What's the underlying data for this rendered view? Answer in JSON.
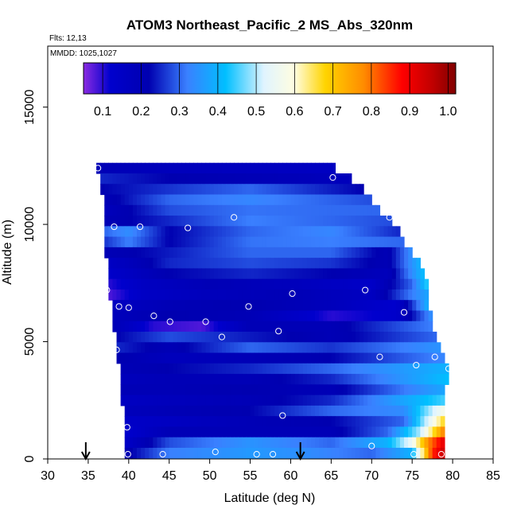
{
  "chart_data": {
    "type": "heatmap",
    "title": "ATOM3 Northeast_Pacific_2 MS_Abs_320nm",
    "flights_label": "Flts: 12,13",
    "mmdd_label": "MMDD: 1025,1027",
    "xlabel": "Latitude (deg N)",
    "ylabel": "Altitude (m)",
    "xlim": [
      30,
      85
    ],
    "ylim": [
      0,
      17600
    ],
    "x_ticks": [
      30,
      35,
      40,
      45,
      50,
      55,
      60,
      65,
      70,
      75,
      80,
      85
    ],
    "y_ticks": [
      0,
      5000,
      10000,
      15000
    ],
    "colorbar": {
      "range": [
        0.05,
        1.02
      ],
      "ticks": [
        "0.1",
        "0.2",
        "0.3",
        "0.4",
        "0.5",
        "0.6",
        "0.7",
        "0.8",
        "0.9",
        "1.0"
      ],
      "tick_values": [
        0.1,
        0.2,
        0.3,
        0.4,
        0.5,
        0.6,
        0.7,
        0.8,
        0.9,
        1.0
      ],
      "stops": [
        {
          "v": 0.05,
          "c": "#8a2be2"
        },
        {
          "v": 0.12,
          "c": "#0000cd"
        },
        {
          "v": 0.22,
          "c": "#0000b0"
        },
        {
          "v": 0.32,
          "c": "#3a80ff"
        },
        {
          "v": 0.42,
          "c": "#00bfff"
        },
        {
          "v": 0.52,
          "c": "#e0f4ff"
        },
        {
          "v": 0.6,
          "c": "#fffde0"
        },
        {
          "v": 0.68,
          "c": "#ffd400"
        },
        {
          "v": 0.78,
          "c": "#ff8c00"
        },
        {
          "v": 0.88,
          "c": "#ff0000"
        },
        {
          "v": 0.96,
          "c": "#c00000"
        },
        {
          "v": 1.02,
          "c": "#800000"
        }
      ]
    },
    "arrows_lat": [
      34.7,
      61.2
    ],
    "bands": [
      {
        "alt": 12400,
        "lat_min": 36.0,
        "lat_max": 65.5,
        "values": [
          [
            36,
            0.2
          ],
          [
            45,
            0.18
          ],
          [
            55,
            0.17
          ],
          [
            65.5,
            0.16
          ]
        ]
      },
      {
        "alt": 11950,
        "lat_min": 36.5,
        "lat_max": 67.5,
        "values": [
          [
            36.5,
            0.25
          ],
          [
            45,
            0.22
          ],
          [
            55,
            0.2
          ],
          [
            67.5,
            0.18
          ]
        ]
      },
      {
        "alt": 11500,
        "lat_min": 36.5,
        "lat_max": 69.0,
        "values": [
          [
            36.5,
            0.22
          ],
          [
            45,
            0.26
          ],
          [
            55,
            0.3
          ],
          [
            69,
            0.22
          ]
        ]
      },
      {
        "alt": 11050,
        "lat_min": 37.0,
        "lat_max": 70.0,
        "values": [
          [
            37,
            0.2
          ],
          [
            45,
            0.3
          ],
          [
            55,
            0.33
          ],
          [
            70,
            0.28
          ]
        ]
      },
      {
        "alt": 10600,
        "lat_min": 37.0,
        "lat_max": 71.0,
        "values": [
          [
            37,
            0.18
          ],
          [
            45,
            0.28
          ],
          [
            55,
            0.31
          ],
          [
            71,
            0.3
          ]
        ]
      },
      {
        "alt": 10150,
        "lat_min": 37.0,
        "lat_max": 72.5,
        "values": [
          [
            37,
            0.2
          ],
          [
            45,
            0.25
          ],
          [
            55,
            0.32
          ],
          [
            65,
            0.3
          ],
          [
            72.5,
            0.28
          ]
        ]
      },
      {
        "alt": 9700,
        "lat_min": 37.0,
        "lat_max": 73.5,
        "values": [
          [
            37,
            0.3
          ],
          [
            40,
            0.34
          ],
          [
            45,
            0.22
          ],
          [
            55,
            0.3
          ],
          [
            65,
            0.33
          ],
          [
            73.5,
            0.25
          ]
        ]
      },
      {
        "alt": 9250,
        "lat_min": 37.0,
        "lat_max": 74.0,
        "values": [
          [
            37,
            0.26
          ],
          [
            40,
            0.32
          ],
          [
            45,
            0.22
          ],
          [
            55,
            0.31
          ],
          [
            65,
            0.32
          ],
          [
            74,
            0.3
          ]
        ]
      },
      {
        "alt": 8800,
        "lat_min": 37.0,
        "lat_max": 75.0,
        "values": [
          [
            37,
            0.2
          ],
          [
            45,
            0.24
          ],
          [
            55,
            0.3
          ],
          [
            65,
            0.3
          ],
          [
            72,
            0.2
          ],
          [
            75,
            0.35
          ]
        ]
      },
      {
        "alt": 8350,
        "lat_min": 37.5,
        "lat_max": 76.0,
        "values": [
          [
            37.5,
            0.15
          ],
          [
            45,
            0.25
          ],
          [
            55,
            0.28
          ],
          [
            65,
            0.26
          ],
          [
            72,
            0.2
          ],
          [
            76,
            0.4
          ]
        ]
      },
      {
        "alt": 7900,
        "lat_min": 37.5,
        "lat_max": 76.5,
        "values": [
          [
            37.5,
            0.13
          ],
          [
            45,
            0.22
          ],
          [
            55,
            0.25
          ],
          [
            65,
            0.22
          ],
          [
            72,
            0.18
          ],
          [
            76.5,
            0.42
          ]
        ]
      },
      {
        "alt": 7450,
        "lat_min": 37.5,
        "lat_max": 77.0,
        "values": [
          [
            37.5,
            0.1
          ],
          [
            42,
            0.16
          ],
          [
            50,
            0.2
          ],
          [
            60,
            0.18
          ],
          [
            70,
            0.14
          ],
          [
            75,
            0.3
          ],
          [
            77,
            0.45
          ]
        ]
      },
      {
        "alt": 7000,
        "lat_min": 37.5,
        "lat_max": 77.0,
        "values": [
          [
            37.5,
            0.08
          ],
          [
            42,
            0.15
          ],
          [
            50,
            0.18
          ],
          [
            60,
            0.2
          ],
          [
            70,
            0.16
          ],
          [
            75,
            0.32
          ],
          [
            77,
            0.38
          ]
        ]
      },
      {
        "alt": 6550,
        "lat_min": 38.0,
        "lat_max": 77.0,
        "values": [
          [
            38,
            0.16
          ],
          [
            45,
            0.2
          ],
          [
            55,
            0.22
          ],
          [
            65,
            0.18
          ],
          [
            73,
            0.12
          ],
          [
            77,
            0.4
          ]
        ]
      },
      {
        "alt": 6100,
        "lat_min": 38.0,
        "lat_max": 77.5,
        "values": [
          [
            38,
            0.18
          ],
          [
            45,
            0.22
          ],
          [
            55,
            0.2
          ],
          [
            65,
            0.1
          ],
          [
            73,
            0.13
          ],
          [
            77.5,
            0.35
          ]
        ]
      },
      {
        "alt": 5650,
        "lat_min": 38.0,
        "lat_max": 77.5,
        "values": [
          [
            38,
            0.2
          ],
          [
            43,
            0.1
          ],
          [
            49,
            0.08
          ],
          [
            55,
            0.2
          ],
          [
            65,
            0.2
          ],
          [
            77.5,
            0.32
          ]
        ]
      },
      {
        "alt": 5200,
        "lat_min": 38.5,
        "lat_max": 78.0,
        "values": [
          [
            38.5,
            0.22
          ],
          [
            45,
            0.28
          ],
          [
            55,
            0.24
          ],
          [
            65,
            0.2
          ],
          [
            78,
            0.3
          ]
        ]
      },
      {
        "alt": 4750,
        "lat_min": 38.5,
        "lat_max": 78.5,
        "values": [
          [
            38.5,
            0.25
          ],
          [
            45,
            0.2
          ],
          [
            55,
            0.3
          ],
          [
            65,
            0.26
          ],
          [
            78.5,
            0.35
          ]
        ]
      },
      {
        "alt": 4300,
        "lat_min": 38.5,
        "lat_max": 79.0,
        "values": [
          [
            38.5,
            0.22
          ],
          [
            45,
            0.18
          ],
          [
            55,
            0.2
          ],
          [
            65,
            0.22
          ],
          [
            79,
            0.33
          ]
        ]
      },
      {
        "alt": 3850,
        "lat_min": 39.0,
        "lat_max": 79.5,
        "values": [
          [
            39,
            0.2
          ],
          [
            45,
            0.22
          ],
          [
            55,
            0.25
          ],
          [
            65,
            0.3
          ],
          [
            79.5,
            0.4
          ]
        ]
      },
      {
        "alt": 3400,
        "lat_min": 39.0,
        "lat_max": 79.5,
        "values": [
          [
            39,
            0.18
          ],
          [
            45,
            0.2
          ],
          [
            55,
            0.2
          ],
          [
            65,
            0.25
          ],
          [
            79.5,
            0.42
          ]
        ]
      },
      {
        "alt": 2950,
        "lat_min": 39.0,
        "lat_max": 79.0,
        "values": [
          [
            39,
            0.2
          ],
          [
            45,
            0.2
          ],
          [
            55,
            0.22
          ],
          [
            65,
            0.2
          ],
          [
            79,
            0.38
          ]
        ]
      },
      {
        "alt": 2500,
        "lat_min": 39.0,
        "lat_max": 79.0,
        "values": [
          [
            39,
            0.16
          ],
          [
            45,
            0.18
          ],
          [
            55,
            0.2
          ],
          [
            65,
            0.25
          ],
          [
            79,
            0.45
          ]
        ]
      },
      {
        "alt": 2050,
        "lat_min": 39.5,
        "lat_max": 79.0,
        "values": [
          [
            39.5,
            0.18
          ],
          [
            45,
            0.2
          ],
          [
            55,
            0.22
          ],
          [
            65,
            0.3
          ],
          [
            74,
            0.34
          ],
          [
            79,
            0.58
          ]
        ]
      },
      {
        "alt": 1600,
        "lat_min": 39.5,
        "lat_max": 79.0,
        "values": [
          [
            39.5,
            0.14
          ],
          [
            45,
            0.16
          ],
          [
            55,
            0.2
          ],
          [
            65,
            0.22
          ],
          [
            74,
            0.3
          ],
          [
            79,
            0.68
          ]
        ]
      },
      {
        "alt": 1150,
        "lat_min": 39.5,
        "lat_max": 79.0,
        "values": [
          [
            39.5,
            0.12
          ],
          [
            45,
            0.2
          ],
          [
            55,
            0.2
          ],
          [
            65,
            0.2
          ],
          [
            72,
            0.3
          ],
          [
            76,
            0.5
          ],
          [
            79,
            0.8
          ]
        ]
      },
      {
        "alt": 700,
        "lat_min": 39.5,
        "lat_max": 79.0,
        "values": [
          [
            39.5,
            0.14
          ],
          [
            45,
            0.28
          ],
          [
            55,
            0.35
          ],
          [
            65,
            0.3
          ],
          [
            72,
            0.4
          ],
          [
            75,
            0.55
          ],
          [
            77,
            0.78
          ],
          [
            79,
            0.92
          ]
        ]
      },
      {
        "alt": 250,
        "lat_min": 39.5,
        "lat_max": 79.0,
        "values": [
          [
            39.5,
            0.2
          ],
          [
            45,
            0.32
          ],
          [
            55,
            0.36
          ],
          [
            62,
            0.34
          ],
          [
            70,
            0.3
          ],
          [
            75,
            0.4
          ],
          [
            77.5,
            0.85
          ],
          [
            79,
            0.95
          ]
        ]
      }
    ],
    "points": [
      [
        36.2,
        12400
      ],
      [
        65.2,
        12000
      ],
      [
        72.2,
        10300
      ],
      [
        53.0,
        10300
      ],
      [
        38.2,
        9900
      ],
      [
        41.4,
        9900
      ],
      [
        47.3,
        9850
      ],
      [
        37.3,
        7200
      ],
      [
        60.2,
        7050
      ],
      [
        69.2,
        7200
      ],
      [
        38.8,
        6500
      ],
      [
        40.0,
        6450
      ],
      [
        54.8,
        6500
      ],
      [
        43.1,
        6100
      ],
      [
        45.1,
        5850
      ],
      [
        49.5,
        5850
      ],
      [
        74.0,
        6250
      ],
      [
        58.5,
        5450
      ],
      [
        51.5,
        5200
      ],
      [
        38.5,
        4650
      ],
      [
        71.0,
        4350
      ],
      [
        77.8,
        4350
      ],
      [
        75.5,
        4000
      ],
      [
        79.5,
        3850
      ],
      [
        59.0,
        1850
      ],
      [
        39.8,
        1350
      ],
      [
        70.0,
        550
      ],
      [
        50.7,
        300
      ],
      [
        55.8,
        200
      ],
      [
        57.8,
        200
      ],
      [
        44.2,
        200
      ],
      [
        39.9,
        200
      ],
      [
        75.2,
        200
      ],
      [
        78.6,
        200
      ]
    ]
  }
}
